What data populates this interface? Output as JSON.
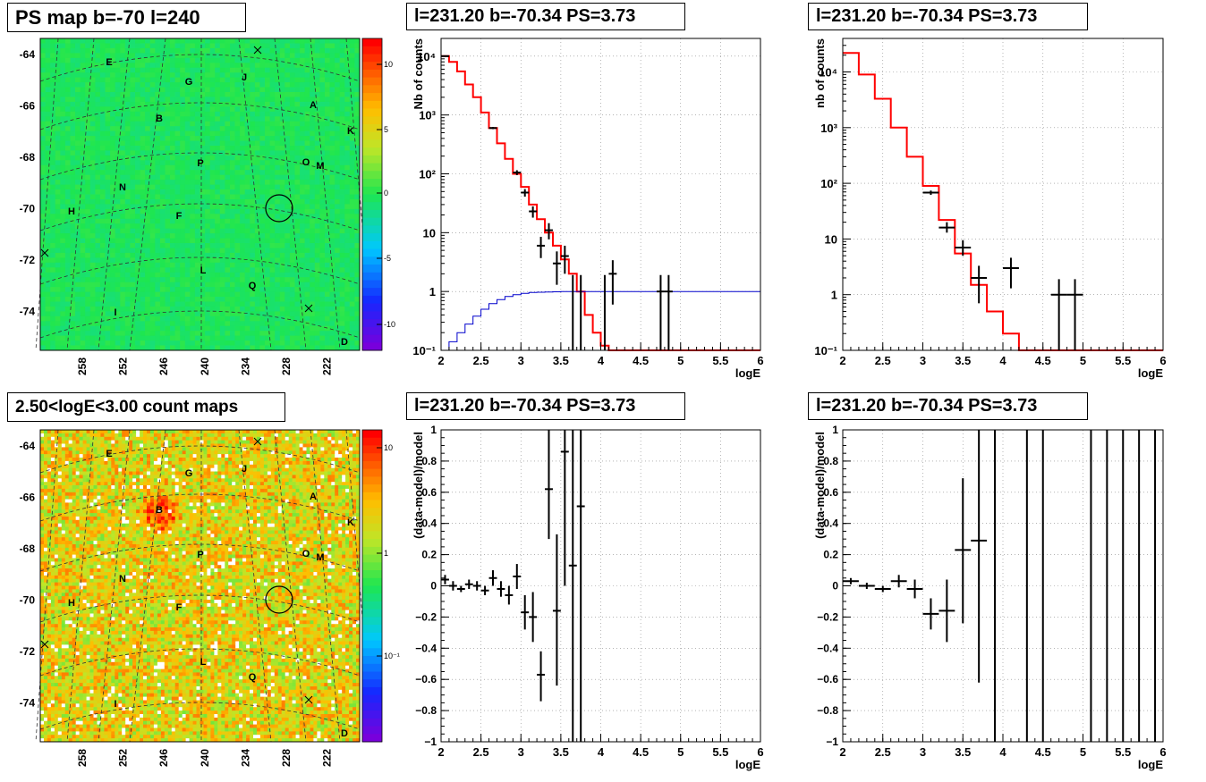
{
  "panels": {
    "map_top": {
      "title": "PS map b=-70 l=240",
      "y_ticks": [
        "-64",
        "-66",
        "-68",
        "-70",
        "-72",
        "-74"
      ],
      "x_ticks": [
        "258",
        "252",
        "246",
        "240",
        "234",
        "228",
        "222"
      ],
      "colorbar_ticks": [
        "10",
        "5",
        "0",
        "-5",
        "-10"
      ],
      "sources": [
        "E",
        "G",
        "J",
        "A",
        "K",
        "B",
        "P",
        "O",
        "M",
        "N",
        "H",
        "F",
        "L",
        "Q",
        "I",
        "D"
      ],
      "colors": {
        "background": "#22e84a",
        "circle": "#000000"
      }
    },
    "map_bottom": {
      "title": "2.50<logE<3.00 count maps",
      "y_ticks": [
        "-64",
        "-66",
        "-68",
        "-70",
        "-72",
        "-74"
      ],
      "x_ticks": [
        "258",
        "252",
        "246",
        "240",
        "234",
        "228",
        "222"
      ],
      "colorbar_ticks": [
        "10",
        "1",
        "10⁻¹"
      ],
      "sources": [
        "E",
        "G",
        "J",
        "A",
        "K",
        "B",
        "P",
        "O",
        "M",
        "N",
        "H",
        "F",
        "L",
        "Q",
        "I",
        "D"
      ],
      "colors": {
        "background": "#e6d84a",
        "hotspot": "#e84020"
      }
    }
  },
  "chart_data": [
    {
      "type": "line",
      "title": "l=231.20 b=-70.34 PS=3.73",
      "xlabel": "logE",
      "ylabel": "Nb of counts",
      "xlim": [
        2,
        6
      ],
      "ylim": [
        0.1,
        20000
      ],
      "log_y": true,
      "grid": true,
      "x_tick_labels": [
        "2",
        "2.5",
        "3",
        "3.5",
        "4",
        "4.5",
        "5",
        "5.5",
        "6"
      ],
      "y_tick_labels": [
        "10⁻¹",
        "1",
        "10",
        "10²",
        "10³",
        "10⁴"
      ],
      "series": [
        {
          "style": "step",
          "color": "#ff0000",
          "edges": [
            2.0,
            2.1,
            2.2,
            2.3,
            2.4,
            2.5,
            2.6,
            2.7,
            2.8,
            2.9,
            3.0,
            3.1,
            3.2,
            3.3,
            3.4,
            3.5,
            3.6,
            3.7,
            3.8,
            3.9,
            4.0,
            4.1,
            6.0
          ],
          "values": [
            10000,
            8000,
            5500,
            3300,
            2000,
            1100,
            600,
            330,
            180,
            100,
            60,
            30,
            17,
            10,
            6,
            3.5,
            2,
            1,
            0.4,
            0.2,
            0.12,
            0.1
          ]
        },
        {
          "style": "step",
          "color": "#0000cc",
          "edges": [
            2.0,
            2.1,
            2.2,
            2.3,
            2.4,
            2.5,
            2.6,
            2.7,
            2.8,
            2.9,
            3.0,
            3.1,
            3.2,
            3.3,
            3.4,
            3.5,
            3.6,
            3.7,
            3.8,
            4.0,
            6.0
          ],
          "values": [
            0.1,
            0.14,
            0.2,
            0.28,
            0.38,
            0.5,
            0.62,
            0.73,
            0.82,
            0.88,
            0.93,
            0.96,
            0.97,
            0.98,
            0.99,
            1.0,
            1.0,
            1.0,
            1.0,
            1.0
          ]
        },
        {
          "style": "errorbar",
          "color": "#000000",
          "points": [
            {
              "x": 2.05,
              "y": 10000,
              "xerr": 0.05,
              "ylo": 9800,
              "yhi": 10200
            },
            {
              "x": 2.65,
              "y": 600,
              "xerr": 0.05,
              "ylo": 575,
              "yhi": 625
            },
            {
              "x": 2.95,
              "y": 105,
              "xerr": 0.05,
              "ylo": 95,
              "yhi": 115
            },
            {
              "x": 3.05,
              "y": 48,
              "xerr": 0.05,
              "ylo": 41,
              "yhi": 55
            },
            {
              "x": 3.15,
              "y": 23,
              "xerr": 0.05,
              "ylo": 18,
              "yhi": 28
            },
            {
              "x": 3.25,
              "y": 6,
              "xerr": 0.05,
              "ylo": 3.7,
              "yhi": 8.5
            },
            {
              "x": 3.35,
              "y": 11,
              "xerr": 0.05,
              "ylo": 7.7,
              "yhi": 14.5
            },
            {
              "x": 3.45,
              "y": 3,
              "xerr": 0.05,
              "ylo": 1.3,
              "yhi": 4.8
            },
            {
              "x": 3.55,
              "y": 4,
              "xerr": 0.05,
              "ylo": 2,
              "yhi": 6
            },
            {
              "x": 3.65,
              "y": 1,
              "xerr": 0,
              "ylo": 0.1,
              "yhi": 1.9
            },
            {
              "x": 3.75,
              "y": 1,
              "xerr": 0,
              "ylo": 0.1,
              "yhi": 1.9
            },
            {
              "x": 4.05,
              "y": 1,
              "xerr": 0,
              "ylo": 0.1,
              "yhi": 1.9
            },
            {
              "x": 4.15,
              "y": 2,
              "xerr": 0.05,
              "ylo": 0.6,
              "yhi": 3.4
            },
            {
              "x": 4.75,
              "y": 1,
              "xerr": 0.05,
              "ylo": 0.1,
              "yhi": 1.9
            },
            {
              "x": 4.85,
              "y": 1,
              "xerr": 0.05,
              "ylo": 0.1,
              "yhi": 1.9
            }
          ]
        }
      ]
    },
    {
      "type": "line",
      "title": "l=231.20 b=-70.34 PS=3.73",
      "xlabel": "logE",
      "ylabel": "nb of counts",
      "xlim": [
        2,
        6
      ],
      "ylim": [
        0.1,
        40000
      ],
      "log_y": true,
      "grid": true,
      "x_tick_labels": [
        "2",
        "2.5",
        "3",
        "3.5",
        "4",
        "4.5",
        "5",
        "5.5",
        "6"
      ],
      "y_tick_labels": [
        "10⁻¹",
        "1",
        "10",
        "10²",
        "10³",
        "10⁴"
      ],
      "series": [
        {
          "style": "step",
          "color": "#ff0000",
          "edges": [
            2.0,
            2.2,
            2.4,
            2.6,
            2.8,
            3.0,
            3.2,
            3.4,
            3.6,
            3.8,
            4.0,
            4.2,
            6.0
          ],
          "values": [
            22000,
            9000,
            3300,
            1000,
            300,
            90,
            22,
            5.5,
            1.5,
            0.5,
            0.2,
            0.1
          ]
        },
        {
          "style": "errorbar",
          "color": "#000000",
          "points": [
            {
              "x": 3.1,
              "y": 68,
              "xerr": 0.1,
              "ylo": 62,
              "yhi": 74
            },
            {
              "x": 3.3,
              "y": 16,
              "xerr": 0.1,
              "ylo": 13,
              "yhi": 20
            },
            {
              "x": 3.5,
              "y": 7,
              "xerr": 0.1,
              "ylo": 5,
              "yhi": 9.5
            },
            {
              "x": 3.7,
              "y": 2,
              "xerr": 0.1,
              "ylo": 0.7,
              "yhi": 3.3
            },
            {
              "x": 4.1,
              "y": 3,
              "xerr": 0.1,
              "ylo": 1.3,
              "yhi": 4.6
            },
            {
              "x": 4.7,
              "y": 1,
              "xerr": 0.1,
              "ylo": 0.1,
              "yhi": 1.9
            },
            {
              "x": 4.9,
              "y": 1,
              "xerr": 0.1,
              "ylo": 0.1,
              "yhi": 1.9
            }
          ]
        }
      ]
    },
    {
      "type": "scatter",
      "title": "l=231.20 b=-70.34 PS=3.73",
      "xlabel": "logE",
      "ylabel": "(data-model)/model",
      "xlim": [
        2,
        6
      ],
      "ylim": [
        -1,
        1
      ],
      "grid": true,
      "x_tick_labels": [
        "2",
        "2.5",
        "3",
        "3.5",
        "4",
        "4.5",
        "5",
        "5.5",
        "6"
      ],
      "y_tick_labels": [
        "−1",
        "−0.8",
        "−0.6",
        "−0.4",
        "−0.2",
        "0",
        "0.2",
        "0.4",
        "0.6",
        "0.8",
        "1"
      ],
      "series": [
        {
          "style": "errorbar",
          "color": "#000000",
          "points": [
            {
              "x": 2.05,
              "y": 0.04,
              "xerr": 0.05,
              "ylo": 0.01,
              "yhi": 0.07
            },
            {
              "x": 2.15,
              "y": 0.0,
              "xerr": 0.05,
              "ylo": -0.03,
              "yhi": 0.03
            },
            {
              "x": 2.25,
              "y": -0.02,
              "xerr": 0.05,
              "ylo": -0.04,
              "yhi": 0.0
            },
            {
              "x": 2.35,
              "y": 0.01,
              "xerr": 0.05,
              "ylo": -0.02,
              "yhi": 0.04
            },
            {
              "x": 2.45,
              "y": 0.0,
              "xerr": 0.05,
              "ylo": -0.03,
              "yhi": 0.03
            },
            {
              "x": 2.55,
              "y": -0.03,
              "xerr": 0.05,
              "ylo": -0.06,
              "yhi": 0.0
            },
            {
              "x": 2.65,
              "y": 0.05,
              "xerr": 0.05,
              "ylo": 0.0,
              "yhi": 0.1
            },
            {
              "x": 2.75,
              "y": -0.02,
              "xerr": 0.05,
              "ylo": -0.07,
              "yhi": 0.03
            },
            {
              "x": 2.85,
              "y": -0.06,
              "xerr": 0.05,
              "ylo": -0.12,
              "yhi": 0.0
            },
            {
              "x": 2.95,
              "y": 0.06,
              "xerr": 0.05,
              "ylo": -0.02,
              "yhi": 0.14
            },
            {
              "x": 3.05,
              "y": -0.17,
              "xerr": 0.05,
              "ylo": -0.28,
              "yhi": -0.06
            },
            {
              "x": 3.15,
              "y": -0.2,
              "xerr": 0.05,
              "ylo": -0.36,
              "yhi": -0.04
            },
            {
              "x": 3.25,
              "y": -0.57,
              "xerr": 0.05,
              "ylo": -0.74,
              "yhi": -0.42
            },
            {
              "x": 3.35,
              "y": 0.62,
              "xerr": 0.05,
              "ylo": 0.3,
              "yhi": 1.0
            },
            {
              "x": 3.45,
              "y": -0.16,
              "xerr": 0.05,
              "ylo": -0.64,
              "yhi": 0.33
            },
            {
              "x": 3.55,
              "y": 0.86,
              "xerr": 0.05,
              "ylo": 0.0,
              "yhi": 1.0
            },
            {
              "x": 3.65,
              "y": 0.13,
              "xerr": 0.05,
              "ylo": -1.0,
              "yhi": 1.0
            },
            {
              "x": 3.75,
              "y": 0.51,
              "xerr": 0.05,
              "ylo": -1.0,
              "yhi": 1.0
            }
          ]
        }
      ]
    },
    {
      "type": "scatter",
      "title": "l=231.20 b=-70.34 PS=3.73",
      "xlabel": "logE",
      "ylabel": "(data-model)/model",
      "xlim": [
        2,
        6
      ],
      "ylim": [
        -1,
        1
      ],
      "grid": true,
      "x_tick_labels": [
        "2",
        "2.5",
        "3",
        "3.5",
        "4",
        "4.5",
        "5",
        "5.5",
        "6"
      ],
      "y_tick_labels": [
        "−1",
        "−0.8",
        "−0.6",
        "−0.4",
        "−0.2",
        "0",
        "0.2",
        "0.4",
        "0.6",
        "0.8",
        "1"
      ],
      "series": [
        {
          "style": "errorbar",
          "color": "#000000",
          "points": [
            {
              "x": 2.1,
              "y": 0.03,
              "xerr": 0.1,
              "ylo": 0.01,
              "yhi": 0.05
            },
            {
              "x": 2.3,
              "y": 0.0,
              "xerr": 0.1,
              "ylo": -0.02,
              "yhi": 0.02
            },
            {
              "x": 2.5,
              "y": -0.02,
              "xerr": 0.1,
              "ylo": -0.04,
              "yhi": 0.0
            },
            {
              "x": 2.7,
              "y": 0.03,
              "xerr": 0.1,
              "ylo": -0.01,
              "yhi": 0.07
            },
            {
              "x": 2.9,
              "y": -0.02,
              "xerr": 0.1,
              "ylo": -0.08,
              "yhi": 0.04
            },
            {
              "x": 3.1,
              "y": -0.18,
              "xerr": 0.1,
              "ylo": -0.28,
              "yhi": -0.08
            },
            {
              "x": 3.3,
              "y": -0.16,
              "xerr": 0.1,
              "ylo": -0.36,
              "yhi": 0.04
            },
            {
              "x": 3.5,
              "y": 0.23,
              "xerr": 0.1,
              "ylo": -0.24,
              "yhi": 0.69
            },
            {
              "x": 3.7,
              "y": 0.29,
              "xerr": 0.1,
              "ylo": -0.62,
              "yhi": 1.0
            },
            {
              "x": 3.9,
              "y": 0,
              "xerr": 0,
              "ylo": -1.0,
              "yhi": 1.0
            },
            {
              "x": 4.3,
              "y": 0,
              "xerr": 0,
              "ylo": -1.0,
              "yhi": 1.0
            },
            {
              "x": 4.5,
              "y": 0,
              "xerr": 0,
              "ylo": -1.0,
              "yhi": 1.0
            },
            {
              "x": 5.1,
              "y": 0,
              "xerr": 0,
              "ylo": -1.0,
              "yhi": 1.0
            },
            {
              "x": 5.3,
              "y": 0,
              "xerr": 0,
              "ylo": -1.0,
              "yhi": 1.0
            },
            {
              "x": 5.5,
              "y": 0,
              "xerr": 0,
              "ylo": -1.0,
              "yhi": 1.0
            },
            {
              "x": 5.7,
              "y": 0,
              "xerr": 0,
              "ylo": -1.0,
              "yhi": 1.0
            },
            {
              "x": 5.9,
              "y": 0,
              "xerr": 0,
              "ylo": -1.0,
              "yhi": 1.0
            }
          ]
        }
      ]
    }
  ]
}
